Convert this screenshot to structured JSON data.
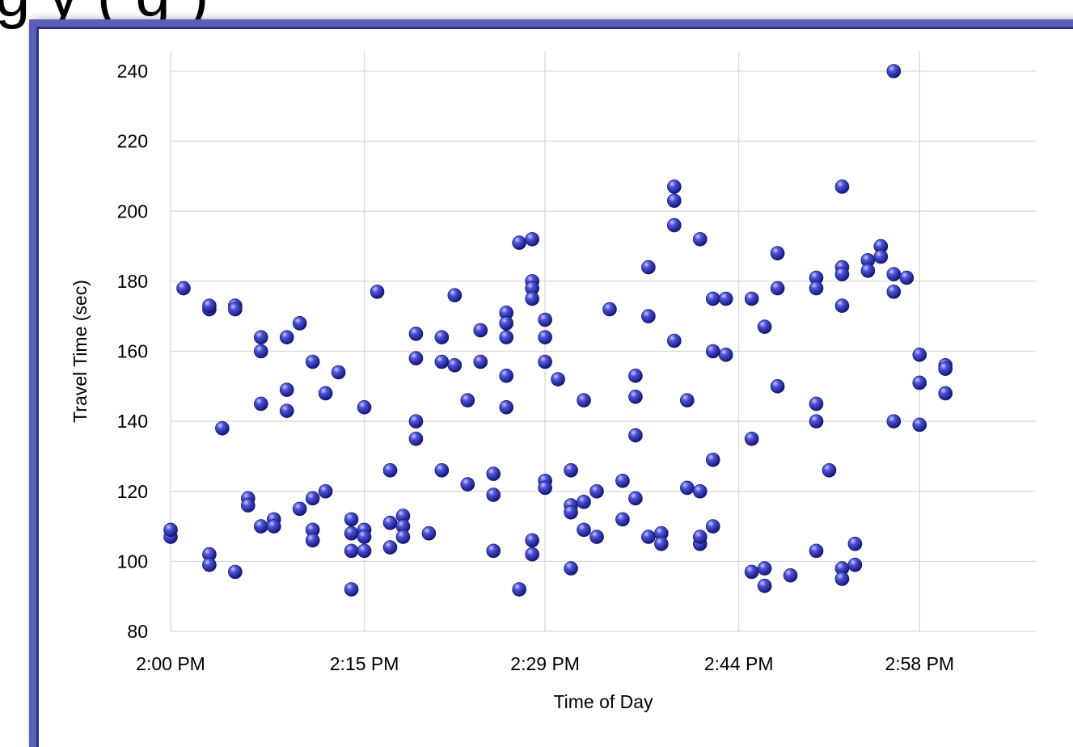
{
  "slide": {
    "title_fragment": "g   y       (  g  )"
  },
  "chart_data": {
    "type": "scatter",
    "title": "",
    "xlabel": "Time of Day",
    "ylabel": "Travel Time (sec)",
    "xlim": [
      "2:00 PM",
      "3:07 PM"
    ],
    "ylim": [
      80,
      240
    ],
    "x_ticks": [
      "2:00 PM",
      "2:15 PM",
      "2:29 PM",
      "2:44 PM",
      "2:58 PM"
    ],
    "y_ticks": [
      80,
      100,
      120,
      140,
      160,
      180,
      200,
      220,
      240
    ],
    "grid": true,
    "legend": "none",
    "marker_color": "#2b2fb0",
    "series": [
      {
        "points": [
          [
            "2:00 PM",
            107
          ],
          [
            "2:00 PM",
            109
          ],
          [
            "2:01 PM",
            178
          ],
          [
            "2:03 PM",
            102
          ],
          [
            "2:03 PM",
            99
          ],
          [
            "2:03 PM",
            172
          ],
          [
            "2:03 PM",
            173
          ],
          [
            "2:04 PM",
            138
          ],
          [
            "2:05 PM",
            97
          ],
          [
            "2:05 PM",
            173
          ],
          [
            "2:05 PM",
            172
          ],
          [
            "2:06 PM",
            118
          ],
          [
            "2:06 PM",
            116
          ],
          [
            "2:07 PM",
            110
          ],
          [
            "2:07 PM",
            164
          ],
          [
            "2:07 PM",
            160
          ],
          [
            "2:07 PM",
            145
          ],
          [
            "2:08 PM",
            112
          ],
          [
            "2:08 PM",
            110
          ],
          [
            "2:09 PM",
            164
          ],
          [
            "2:09 PM",
            149
          ],
          [
            "2:09 PM",
            143
          ],
          [
            "2:10 PM",
            115
          ],
          [
            "2:10 PM",
            168
          ],
          [
            "2:11 PM",
            157
          ],
          [
            "2:11 PM",
            118
          ],
          [
            "2:11 PM",
            109
          ],
          [
            "2:11 PM",
            106
          ],
          [
            "2:12 PM",
            148
          ],
          [
            "2:12 PM",
            120
          ],
          [
            "2:13 PM",
            154
          ],
          [
            "2:14 PM",
            108
          ],
          [
            "2:14 PM",
            112
          ],
          [
            "2:14 PM",
            103
          ],
          [
            "2:14 PM",
            92
          ],
          [
            "2:15 PM",
            144
          ],
          [
            "2:15 PM",
            103
          ],
          [
            "2:15 PM",
            109
          ],
          [
            "2:15 PM",
            107
          ],
          [
            "2:16 PM",
            177
          ],
          [
            "2:17 PM",
            104
          ],
          [
            "2:17 PM",
            111
          ],
          [
            "2:17 PM",
            126
          ],
          [
            "2:18 PM",
            113
          ],
          [
            "2:18 PM",
            110
          ],
          [
            "2:18 PM",
            107
          ],
          [
            "2:19 PM",
            158
          ],
          [
            "2:19 PM",
            165
          ],
          [
            "2:19 PM",
            140
          ],
          [
            "2:19 PM",
            135
          ],
          [
            "2:20 PM",
            108
          ],
          [
            "2:21 PM",
            164
          ],
          [
            "2:21 PM",
            157
          ],
          [
            "2:21 PM",
            126
          ],
          [
            "2:22 PM",
            176
          ],
          [
            "2:22 PM",
            156
          ],
          [
            "2:23 PM",
            146
          ],
          [
            "2:23 PM",
            122
          ],
          [
            "2:24 PM",
            166
          ],
          [
            "2:24 PM",
            157
          ],
          [
            "2:25 PM",
            125
          ],
          [
            "2:25 PM",
            119
          ],
          [
            "2:25 PM",
            103
          ],
          [
            "2:26 PM",
            171
          ],
          [
            "2:26 PM",
            168
          ],
          [
            "2:26 PM",
            164
          ],
          [
            "2:26 PM",
            153
          ],
          [
            "2:26 PM",
            144
          ],
          [
            "2:27 PM",
            191
          ],
          [
            "2:27 PM",
            92
          ],
          [
            "2:28 PM",
            192
          ],
          [
            "2:28 PM",
            180
          ],
          [
            "2:28 PM",
            178
          ],
          [
            "2:28 PM",
            175
          ],
          [
            "2:28 PM",
            106
          ],
          [
            "2:28 PM",
            102
          ],
          [
            "2:29 PM",
            164
          ],
          [
            "2:29 PM",
            157
          ],
          [
            "2:29 PM",
            123
          ],
          [
            "2:29 PM",
            121
          ],
          [
            "2:29 PM",
            169
          ],
          [
            "2:30 PM",
            152
          ],
          [
            "2:31 PM",
            126
          ],
          [
            "2:31 PM",
            116
          ],
          [
            "2:31 PM",
            114
          ],
          [
            "2:31 PM",
            98
          ],
          [
            "2:32 PM",
            146
          ],
          [
            "2:32 PM",
            109
          ],
          [
            "2:32 PM",
            117
          ],
          [
            "2:33 PM",
            120
          ],
          [
            "2:33 PM",
            107
          ],
          [
            "2:34 PM",
            172
          ],
          [
            "2:35 PM",
            123
          ],
          [
            "2:35 PM",
            112
          ],
          [
            "2:36 PM",
            153
          ],
          [
            "2:36 PM",
            147
          ],
          [
            "2:36 PM",
            136
          ],
          [
            "2:36 PM",
            118
          ],
          [
            "2:37 PM",
            107
          ],
          [
            "2:37 PM",
            184
          ],
          [
            "2:37 PM",
            170
          ],
          [
            "2:38 PM",
            108
          ],
          [
            "2:38 PM",
            105
          ],
          [
            "2:39 PM",
            207
          ],
          [
            "2:39 PM",
            203
          ],
          [
            "2:39 PM",
            196
          ],
          [
            "2:39 PM",
            163
          ],
          [
            "2:40 PM",
            146
          ],
          [
            "2:40 PM",
            121
          ],
          [
            "2:41 PM",
            120
          ],
          [
            "2:41 PM",
            105
          ],
          [
            "2:41 PM",
            107
          ],
          [
            "2:41 PM",
            192
          ],
          [
            "2:42 PM",
            175
          ],
          [
            "2:42 PM",
            160
          ],
          [
            "2:42 PM",
            129
          ],
          [
            "2:42 PM",
            110
          ],
          [
            "2:43 PM",
            159
          ],
          [
            "2:43 PM",
            175
          ],
          [
            "2:45 PM",
            97
          ],
          [
            "2:45 PM",
            175
          ],
          [
            "2:45 PM",
            135
          ],
          [
            "2:46 PM",
            167
          ],
          [
            "2:46 PM",
            98
          ],
          [
            "2:46 PM",
            93
          ],
          [
            "2:47 PM",
            188
          ],
          [
            "2:47 PM",
            178
          ],
          [
            "2:47 PM",
            150
          ],
          [
            "2:48 PM",
            96
          ],
          [
            "2:50 PM",
            181
          ],
          [
            "2:50 PM",
            178
          ],
          [
            "2:50 PM",
            145
          ],
          [
            "2:50 PM",
            140
          ],
          [
            "2:50 PM",
            103
          ],
          [
            "2:51 PM",
            126
          ],
          [
            "2:52 PM",
            207
          ],
          [
            "2:52 PM",
            184
          ],
          [
            "2:52 PM",
            182
          ],
          [
            "2:52 PM",
            173
          ],
          [
            "2:52 PM",
            98
          ],
          [
            "2:52 PM",
            95
          ],
          [
            "2:53 PM",
            105
          ],
          [
            "2:53 PM",
            99
          ],
          [
            "2:54 PM",
            186
          ],
          [
            "2:54 PM",
            183
          ],
          [
            "2:55 PM",
            190
          ],
          [
            "2:55 PM",
            187
          ],
          [
            "2:56 PM",
            240
          ],
          [
            "2:56 PM",
            182
          ],
          [
            "2:56 PM",
            177
          ],
          [
            "2:56 PM",
            140
          ],
          [
            "2:57 PM",
            181
          ],
          [
            "2:58 PM",
            159
          ],
          [
            "2:58 PM",
            151
          ],
          [
            "2:58 PM",
            139
          ],
          [
            "3:00 PM",
            156
          ],
          [
            "3:00 PM",
            155
          ],
          [
            "3:00 PM",
            148
          ]
        ]
      }
    ]
  }
}
